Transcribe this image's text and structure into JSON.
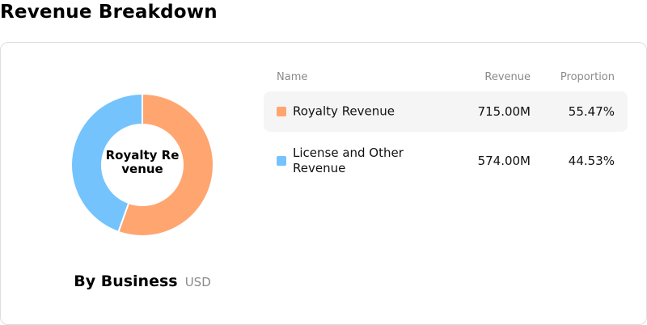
{
  "page": {
    "title": "Revenue Breakdown"
  },
  "chart_data": {
    "type": "pie",
    "donut": true,
    "center_label": "Royalty Revenue",
    "caption": "By Business",
    "unit": "USD",
    "slices": [
      {
        "name": "Royalty Revenue",
        "value": 715.0,
        "value_label": "715.00M",
        "proportion": 55.47,
        "proportion_label": "55.47%",
        "color": "#ffa570"
      },
      {
        "name": "License and Other Revenue",
        "value": 574.0,
        "value_label": "574.00M",
        "proportion": 44.53,
        "proportion_label": "44.53%",
        "color": "#74c3fd"
      }
    ]
  },
  "table": {
    "headers": {
      "name": "Name",
      "revenue": "Revenue",
      "proportion": "Proportion"
    }
  }
}
